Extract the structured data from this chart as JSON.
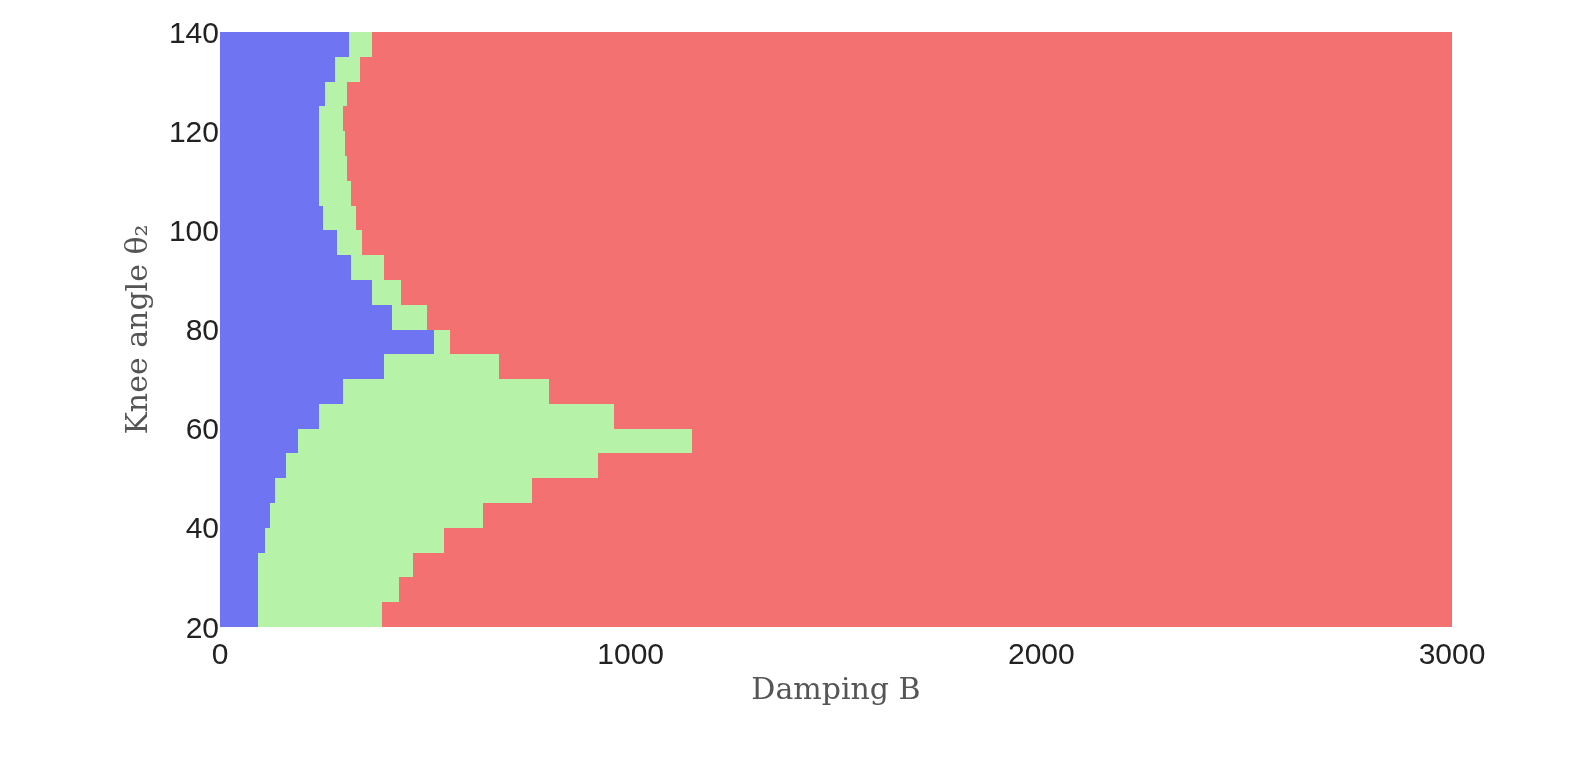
{
  "chart_data": {
    "type": "bar",
    "orientation": "horizontal",
    "stacked": true,
    "xlabel": "Damping B",
    "ylabel": "Knee angle θ₂",
    "x": [
      22.5,
      27.5,
      32.5,
      37.5,
      42.5,
      47.5,
      52.5,
      57.5,
      62.5,
      67.5,
      72.5,
      77.5,
      82.5,
      87.5,
      92.5,
      97.5,
      102.5,
      107.5,
      112.5,
      117.5,
      122.5,
      127.5,
      132.5,
      137.5
    ],
    "series": [
      {
        "color": "#6e74f2",
        "values": [
          93,
          93,
          93,
          110,
          122,
          135,
          160,
          190,
          240,
          300,
          400,
          520,
          420,
          370,
          320,
          285,
          250,
          240,
          240,
          240,
          240,
          255,
          280,
          315
        ]
      },
      {
        "color": "#b6f3a9",
        "values": [
          302,
          342,
          377,
          435,
          518,
          625,
          760,
          960,
          720,
          500,
          280,
          40,
          85,
          70,
          80,
          60,
          80,
          80,
          70,
          65,
          60,
          55,
          60,
          55
        ]
      },
      {
        "color": "#f47171",
        "values": [
          2605,
          2565,
          2530,
          2455,
          2360,
          2240,
          2080,
          1850,
          2040,
          2200,
          2320,
          2440,
          2495,
          2560,
          2600,
          2655,
          2670,
          2680,
          2690,
          2695,
          2700,
          2690,
          2660,
          2630
        ]
      }
    ],
    "xlim": [
      0,
      3000
    ],
    "xticks": [
      0,
      1000,
      2000,
      3000
    ],
    "ylim": [
      20,
      140
    ],
    "yticks": [
      20,
      40,
      60,
      80,
      100,
      120,
      140
    ]
  }
}
